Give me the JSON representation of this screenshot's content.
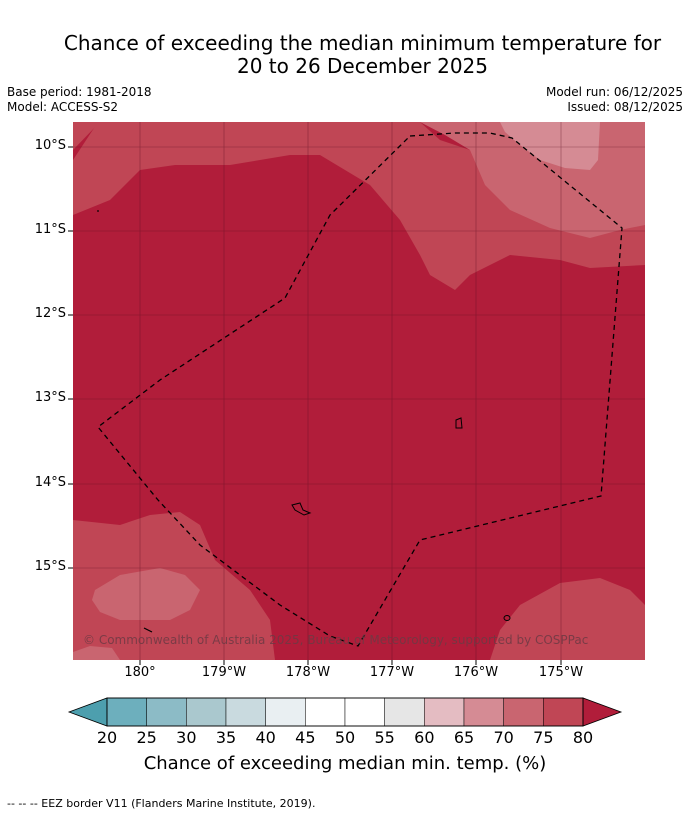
{
  "title": {
    "line1": "Chance of exceeding the median minimum temperature for",
    "line2": "20 to 26 December 2025"
  },
  "meta": {
    "base_period": "Base period: 1981-2018",
    "model": "Model: ACCESS-S2",
    "model_run": "Model run: 06/12/2025",
    "issued": "Issued: 08/12/2025"
  },
  "map": {
    "lat_labels": [
      "10°S",
      "11°S",
      "12°S",
      "13°S",
      "14°S",
      "15°S"
    ],
    "lon_labels": [
      "180°",
      "179°W",
      "178°W",
      "177°W",
      "176°W",
      "175°W"
    ],
    "copyright": "© Commonwealth of Australia 2025, Bureau of Meteorology, supported by COSPPac",
    "colors": {
      "class_75_80": "#b11d3a",
      "class_70_75": "#c04655",
      "class_65_70": "#c96570",
      "class_60_65": "#d58b94"
    }
  },
  "colorbar": {
    "ticks": [
      "20",
      "25",
      "30",
      "35",
      "40",
      "45",
      "50",
      "55",
      "60",
      "65",
      "70",
      "75",
      "80"
    ],
    "colors": [
      "#4d9fae",
      "#6dafbd",
      "#8cbbc6",
      "#aac8ce",
      "#c9dadf",
      "#e9eff2",
      "#ffffff",
      "#ffffff",
      "#e6e6e6",
      "#e4bcc2",
      "#d58b94",
      "#c96570",
      "#c04655",
      "#b11d3a"
    ],
    "label": "Chance of exceeding median min. temp. (%)"
  },
  "footnote": "--  --  -- EEZ border V11 (Flanders Marine Institute, 2019)."
}
